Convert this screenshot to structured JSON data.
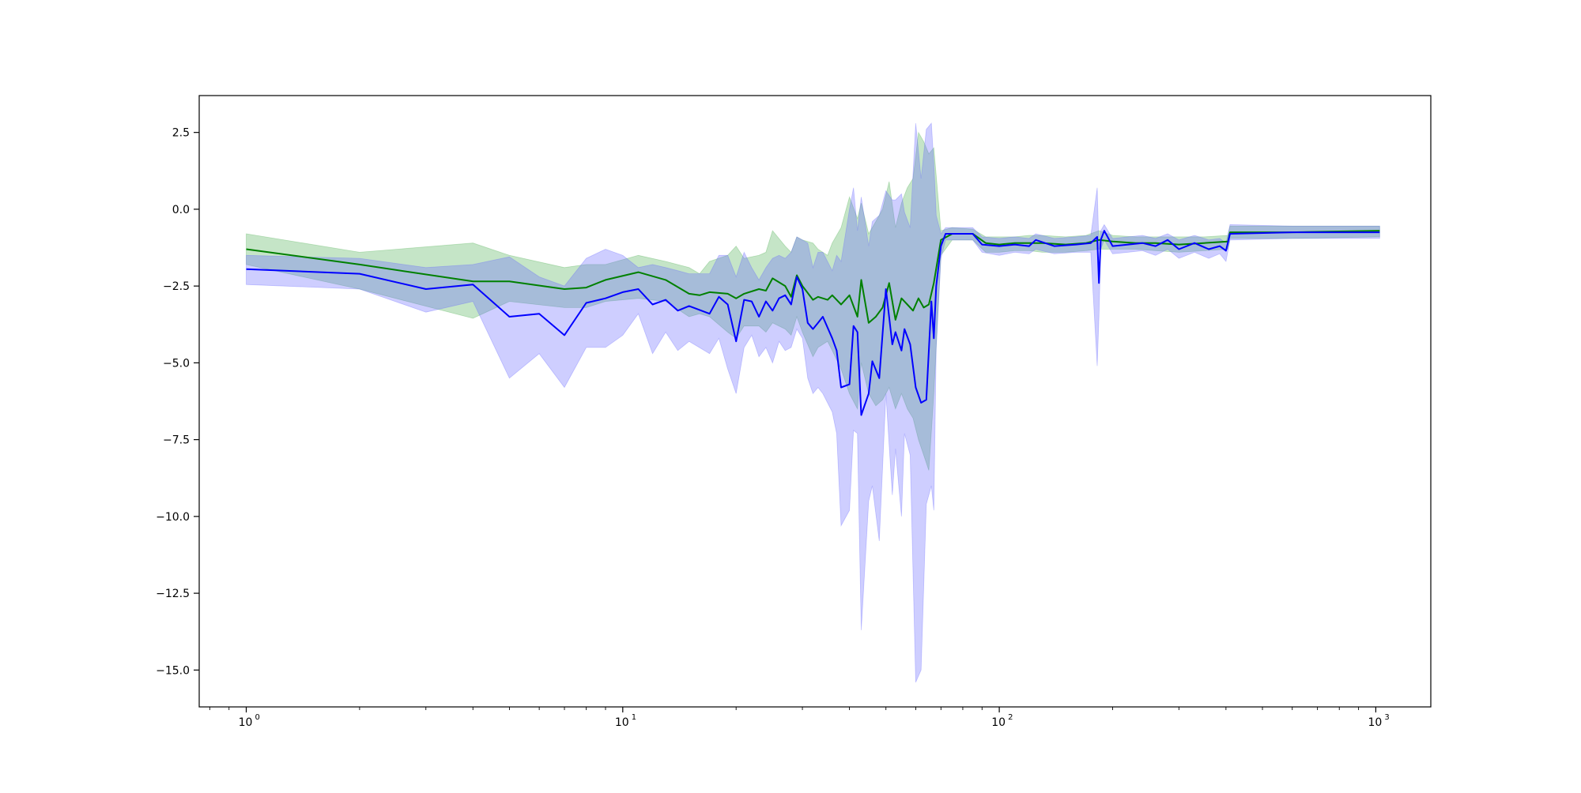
{
  "chart_data": {
    "type": "line",
    "title": "",
    "xlabel": "",
    "ylabel": "",
    "xscale": "log",
    "xlim": [
      0.75,
      1400
    ],
    "ylim": [
      -16.2,
      3.7
    ],
    "grid": false,
    "legend": "none",
    "x_ticks": [
      1,
      10,
      100,
      1000
    ],
    "x_tick_labels": [
      "10",
      "10",
      "10",
      "10"
    ],
    "x_tick_exponents": [
      "0",
      "1",
      "2",
      "3"
    ],
    "y_ticks": [
      2.5,
      0.0,
      -2.5,
      -5.0,
      -7.5,
      -10.0,
      -12.5,
      -15.0
    ],
    "y_tick_labels": [
      "2.5",
      "0.0",
      "−2.5",
      "−5.0",
      "−7.5",
      "−10.0",
      "−12.5",
      "−15.0"
    ],
    "series": [
      {
        "color": "#008000",
        "band_color": "#4caf50",
        "points": [
          [
            1,
            -1.3,
            -0.8,
            -1.8
          ],
          [
            2,
            -1.8,
            -1.4,
            -2.6
          ],
          [
            4,
            -2.35,
            -1.1,
            -3.55
          ],
          [
            5,
            -2.35,
            -1.5,
            -3.0
          ],
          [
            7,
            -2.6,
            -1.9,
            -3.2
          ],
          [
            8,
            -2.55,
            -1.8,
            -3.2
          ],
          [
            9,
            -2.3,
            -1.8,
            -3.0
          ],
          [
            11,
            -2.05,
            -1.5,
            -2.9
          ],
          [
            13,
            -2.3,
            -1.7,
            -3.0
          ],
          [
            15,
            -2.75,
            -1.9,
            -3.5
          ],
          [
            16,
            -2.8,
            -2.1,
            -3.4
          ],
          [
            17,
            -2.7,
            -1.7,
            -3.5
          ],
          [
            19,
            -2.75,
            -1.5,
            -4.0
          ],
          [
            20,
            -2.9,
            -1.2,
            -4.2
          ],
          [
            21,
            -2.75,
            -1.6,
            -3.8
          ],
          [
            23,
            -2.6,
            -1.5,
            -3.8
          ],
          [
            24,
            -2.65,
            -1.4,
            -4.0
          ],
          [
            25,
            -2.25,
            -0.7,
            -3.7
          ],
          [
            27,
            -2.5,
            -1.2,
            -3.9
          ],
          [
            28,
            -2.85,
            -1.4,
            -4.1
          ],
          [
            29,
            -2.15,
            -0.9,
            -3.5
          ],
          [
            30,
            -2.5,
            -1.0,
            -4.0
          ],
          [
            32,
            -2.95,
            -1.1,
            -4.8
          ],
          [
            33,
            -2.85,
            -1.3,
            -4.5
          ],
          [
            35,
            -2.95,
            -1.5,
            -4.3
          ],
          [
            36,
            -2.8,
            -1.1,
            -4.6
          ],
          [
            38,
            -3.1,
            -0.6,
            -5.2
          ],
          [
            40,
            -2.8,
            0.4,
            -6.0
          ],
          [
            42,
            -3.5,
            -0.3,
            -6.5
          ],
          [
            43,
            -2.3,
            0.2,
            -5.0
          ],
          [
            45,
            -3.7,
            -0.8,
            -6.0
          ],
          [
            47,
            -3.5,
            -0.4,
            -6.4
          ],
          [
            49,
            -3.2,
            0.0,
            -6.2
          ],
          [
            51,
            -2.4,
            0.9,
            -5.8
          ],
          [
            53,
            -3.6,
            -0.6,
            -6.5
          ],
          [
            55,
            -2.9,
            0.2,
            -6.0
          ],
          [
            57,
            -3.1,
            0.7,
            -6.5
          ],
          [
            59,
            -3.3,
            1.0,
            -6.8
          ],
          [
            61,
            -2.9,
            2.5,
            -7.5
          ],
          [
            63,
            -3.2,
            2.2,
            -8.0
          ],
          [
            65,
            -3.1,
            1.8,
            -8.5
          ],
          [
            67,
            -2.4,
            2.0,
            -6.0
          ],
          [
            70,
            -1.0,
            -0.7,
            -1.5
          ],
          [
            75,
            -0.8,
            -0.6,
            -1.0
          ],
          [
            85,
            -0.8,
            -0.65,
            -1.0
          ],
          [
            92,
            -1.1,
            -0.9,
            -1.4
          ],
          [
            100,
            -1.15,
            -0.9,
            -1.4
          ],
          [
            110,
            -1.1,
            -0.9,
            -1.35
          ],
          [
            120,
            -1.1,
            -0.85,
            -1.35
          ],
          [
            130,
            -1.1,
            -0.85,
            -1.4
          ],
          [
            150,
            -1.15,
            -0.9,
            -1.4
          ],
          [
            170,
            -1.1,
            -0.85,
            -1.35
          ],
          [
            184,
            -1.0,
            -0.7,
            -1.3
          ],
          [
            200,
            -1.05,
            -0.85,
            -1.3
          ],
          [
            230,
            -1.1,
            -0.9,
            -1.3
          ],
          [
            260,
            -1.1,
            -0.9,
            -1.35
          ],
          [
            300,
            -1.15,
            -0.9,
            -1.4
          ],
          [
            350,
            -1.1,
            -0.9,
            -1.35
          ],
          [
            405,
            -1.05,
            -0.85,
            -1.3
          ],
          [
            410,
            -0.75,
            -0.55,
            -0.95
          ],
          [
            600,
            -0.75,
            -0.55,
            -0.95
          ],
          [
            1024,
            -0.7,
            -0.55,
            -0.9
          ]
        ]
      },
      {
        "color": "#0000ff",
        "band_color": "#6666ff",
        "points": [
          [
            1,
            -1.95,
            -1.5,
            -2.45
          ],
          [
            2,
            -2.1,
            -1.6,
            -2.6
          ],
          [
            3,
            -2.6,
            -1.9,
            -3.35
          ],
          [
            4,
            -2.45,
            -1.8,
            -3.0
          ],
          [
            5,
            -3.5,
            -1.55,
            -5.5
          ],
          [
            6,
            -3.4,
            -2.2,
            -4.7
          ],
          [
            7,
            -4.1,
            -2.5,
            -5.8
          ],
          [
            8,
            -3.05,
            -1.6,
            -4.5
          ],
          [
            9,
            -2.9,
            -1.3,
            -4.5
          ],
          [
            10,
            -2.7,
            -1.5,
            -4.1
          ],
          [
            11,
            -2.6,
            -1.9,
            -3.4
          ],
          [
            12,
            -3.1,
            -1.8,
            -4.7
          ],
          [
            13,
            -2.95,
            -1.9,
            -4.0
          ],
          [
            14,
            -3.3,
            -2.0,
            -4.6
          ],
          [
            15,
            -3.15,
            -2.1,
            -4.3
          ],
          [
            17,
            -3.4,
            -2.1,
            -4.7
          ],
          [
            18,
            -2.85,
            -1.5,
            -4.2
          ],
          [
            19,
            -3.1,
            -1.5,
            -5.2
          ],
          [
            20,
            -4.3,
            -2.2,
            -6.0
          ],
          [
            21,
            -2.95,
            -1.4,
            -4.5
          ],
          [
            22,
            -3.0,
            -1.9,
            -4.1
          ],
          [
            23,
            -3.5,
            -2.3,
            -4.8
          ],
          [
            24,
            -3.0,
            -1.9,
            -4.5
          ],
          [
            25,
            -3.3,
            -1.6,
            -5.0
          ],
          [
            26,
            -2.9,
            -1.5,
            -4.3
          ],
          [
            27,
            -2.8,
            -1.6,
            -4.6
          ],
          [
            28,
            -3.1,
            -1.4,
            -4.5
          ],
          [
            29,
            -2.2,
            -0.9,
            -3.9
          ],
          [
            30,
            -2.6,
            -1.0,
            -4.2
          ],
          [
            31,
            -3.7,
            -1.1,
            -5.5
          ],
          [
            32,
            -3.9,
            -1.9,
            -6.0
          ],
          [
            33,
            -3.7,
            -1.4,
            -5.8
          ],
          [
            34,
            -3.5,
            -1.4,
            -6.0
          ],
          [
            36,
            -4.2,
            -2.0,
            -6.6
          ],
          [
            37,
            -4.6,
            -1.5,
            -7.3
          ],
          [
            38,
            -5.8,
            -1.7,
            -10.3
          ],
          [
            40,
            -5.7,
            0.0,
            -9.8
          ],
          [
            41,
            -3.8,
            0.7,
            -7.2
          ],
          [
            42,
            -4.0,
            -0.7,
            -7.3
          ],
          [
            43,
            -6.7,
            0.4,
            -13.7
          ],
          [
            45,
            -6.0,
            -1.2,
            -9.5
          ],
          [
            46,
            -4.95,
            -0.4,
            -9.0
          ],
          [
            48,
            -5.5,
            -0.2,
            -10.8
          ],
          [
            50,
            -2.6,
            0.6,
            -6.0
          ],
          [
            52,
            -4.4,
            0.3,
            -9.3
          ],
          [
            53,
            -4.0,
            0.3,
            -7.8
          ],
          [
            55,
            -4.6,
            0.5,
            -10.0
          ],
          [
            56,
            -3.9,
            -0.1,
            -7.3
          ],
          [
            58,
            -4.4,
            -0.6,
            -8.0
          ],
          [
            60,
            -5.8,
            2.8,
            -15.4
          ],
          [
            62,
            -6.3,
            1.0,
            -15.0
          ],
          [
            64,
            -6.2,
            2.6,
            -9.6
          ],
          [
            66,
            -3.0,
            2.8,
            -9.0
          ],
          [
            67,
            -4.2,
            1.5,
            -9.8
          ],
          [
            68,
            -2.5,
            -0.2,
            -4.5
          ],
          [
            70,
            -1.2,
            -0.8,
            -1.6
          ],
          [
            72,
            -0.8,
            -0.6,
            -1.0
          ],
          [
            85,
            -0.8,
            -0.6,
            -1.0
          ],
          [
            90,
            -1.15,
            -0.9,
            -1.4
          ],
          [
            100,
            -1.2,
            -0.95,
            -1.5
          ],
          [
            110,
            -1.15,
            -0.9,
            -1.4
          ],
          [
            120,
            -1.2,
            -0.95,
            -1.45
          ],
          [
            125,
            -1.0,
            -0.8,
            -1.3
          ],
          [
            140,
            -1.2,
            -0.95,
            -1.45
          ],
          [
            160,
            -1.15,
            -0.9,
            -1.4
          ],
          [
            175,
            -1.1,
            -0.85,
            -1.4
          ],
          [
            182,
            -0.9,
            0.7,
            -5.1
          ],
          [
            184,
            -2.4,
            -1.3,
            -3.5
          ],
          [
            186,
            -1.0,
            -0.7,
            -1.3
          ],
          [
            190,
            -0.7,
            -0.5,
            -1.0
          ],
          [
            200,
            -1.2,
            -0.95,
            -1.45
          ],
          [
            220,
            -1.15,
            -0.9,
            -1.4
          ],
          [
            240,
            -1.1,
            -0.85,
            -1.35
          ],
          [
            260,
            -1.2,
            -0.95,
            -1.5
          ],
          [
            280,
            -1.0,
            -0.8,
            -1.3
          ],
          [
            300,
            -1.3,
            -1.0,
            -1.6
          ],
          [
            330,
            -1.1,
            -0.85,
            -1.4
          ],
          [
            360,
            -1.3,
            -1.0,
            -1.6
          ],
          [
            385,
            -1.2,
            -0.95,
            -1.45
          ],
          [
            400,
            -1.35,
            -1.1,
            -1.7
          ],
          [
            410,
            -0.8,
            -0.5,
            -1.0
          ],
          [
            600,
            -0.75,
            -0.55,
            -0.95
          ],
          [
            1024,
            -0.75,
            -0.55,
            -0.95
          ]
        ]
      }
    ]
  }
}
